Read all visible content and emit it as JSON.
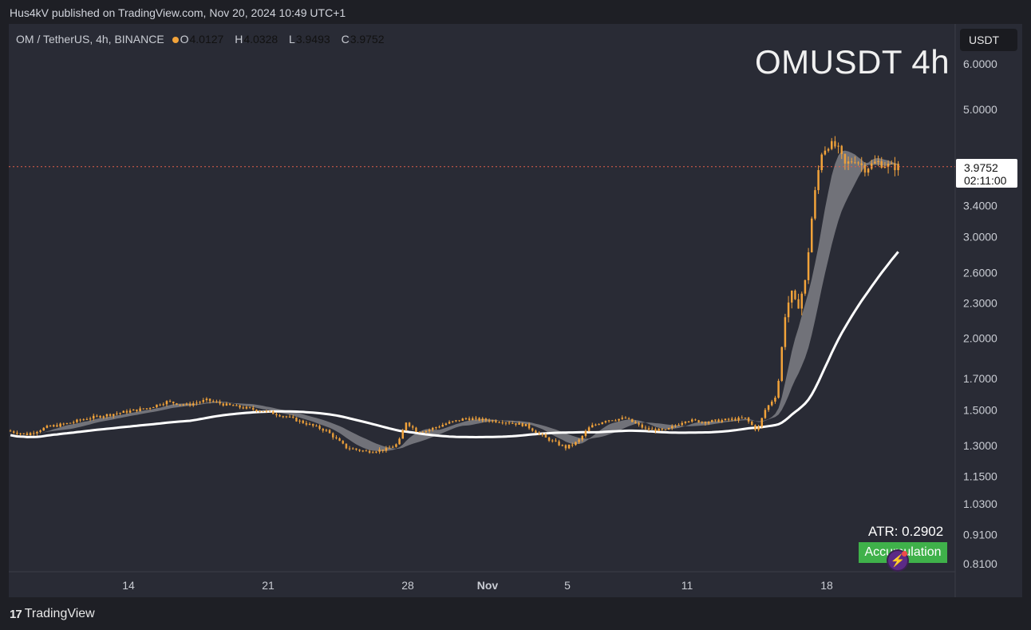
{
  "header": {
    "published": "Hus4kV published on TradingView.com, Nov 20, 2024 10:49 UTC+1"
  },
  "legend": {
    "symbol": "OM / TetherUS, 4h, BINANCE",
    "o_label": "O",
    "o_value": "4.0127",
    "h_label": "H",
    "h_value": "4.0328",
    "l_label": "L",
    "l_value": "3.9493",
    "c_label": "C",
    "c_value": "3.9752"
  },
  "watermark": "OMUSDT 4h",
  "currency_button": "USDT",
  "last_price": {
    "price": "3.9752",
    "countdown": "02:11:00"
  },
  "indicator": {
    "atr": "ATR: 0.2902",
    "badge": "Accumulation"
  },
  "footer": {
    "logo_text": "TradingView"
  },
  "colors": {
    "candle": "#f2a33a",
    "ma_long": "#ffffff",
    "ribbon": "#8a8b90",
    "price_line": "#e0604c",
    "badge": "#3fb14a",
    "background": "#292b35"
  },
  "chart_data": {
    "type": "candlestick",
    "scale": "log",
    "ylim": [
      0.78,
      6.5
    ],
    "y_ticks": [
      "6.0000",
      "5.0000",
      "3.4000",
      "3.0000",
      "2.6000",
      "2.3000",
      "2.0000",
      "1.7000",
      "1.5000",
      "1.3000",
      "1.1500",
      "1.0300",
      "0.9100",
      "0.8100"
    ],
    "x_ticks": [
      {
        "label": "14",
        "day": 14
      },
      {
        "label": "21",
        "day": 21
      },
      {
        "label": "28",
        "day": 28
      },
      {
        "label": "Nov",
        "day": 32
      },
      {
        "label": "5",
        "day": 36
      },
      {
        "label": "11",
        "day": 42
      },
      {
        "label": "18",
        "day": 49
      }
    ],
    "x_range_days": [
      8.0,
      52.6
    ],
    "anchors": [
      [
        8.0,
        1.38
      ],
      [
        9.0,
        1.36
      ],
      [
        10.0,
        1.4
      ],
      [
        11.0,
        1.42
      ],
      [
        12.0,
        1.45
      ],
      [
        13.0,
        1.47
      ],
      [
        14.0,
        1.49
      ],
      [
        15.0,
        1.51
      ],
      [
        16.0,
        1.55
      ],
      [
        17.0,
        1.53
      ],
      [
        18.0,
        1.56
      ],
      [
        19.0,
        1.53
      ],
      [
        20.0,
        1.51
      ],
      [
        21.0,
        1.49
      ],
      [
        22.0,
        1.46
      ],
      [
        23.0,
        1.42
      ],
      [
        24.0,
        1.38
      ],
      [
        25.0,
        1.29
      ],
      [
        26.0,
        1.27
      ],
      [
        27.0,
        1.28
      ],
      [
        27.6,
        1.31
      ],
      [
        28.0,
        1.43
      ],
      [
        28.5,
        1.38
      ],
      [
        29.0,
        1.38
      ],
      [
        30.0,
        1.42
      ],
      [
        31.0,
        1.45
      ],
      [
        32.0,
        1.44
      ],
      [
        33.0,
        1.43
      ],
      [
        34.0,
        1.41
      ],
      [
        35.0,
        1.34
      ],
      [
        36.0,
        1.29
      ],
      [
        36.6,
        1.32
      ],
      [
        37.2,
        1.4
      ],
      [
        38.0,
        1.44
      ],
      [
        39.0,
        1.45
      ],
      [
        40.0,
        1.39
      ],
      [
        41.0,
        1.38
      ],
      [
        42.0,
        1.44
      ],
      [
        43.0,
        1.43
      ],
      [
        44.0,
        1.44
      ],
      [
        45.0,
        1.45
      ],
      [
        45.6,
        1.38
      ],
      [
        46.0,
        1.5
      ],
      [
        46.6,
        1.6
      ],
      [
        47.0,
        2.2
      ],
      [
        47.3,
        2.4
      ],
      [
        47.6,
        2.25
      ],
      [
        48.0,
        2.5
      ],
      [
        48.4,
        3.4
      ],
      [
        48.8,
        4.2
      ],
      [
        49.2,
        4.35
      ],
      [
        49.6,
        4.3
      ],
      [
        50.0,
        4.0
      ],
      [
        50.5,
        4.1
      ],
      [
        51.0,
        3.95
      ],
      [
        51.6,
        4.05
      ],
      [
        52.3,
        3.975
      ]
    ]
  }
}
